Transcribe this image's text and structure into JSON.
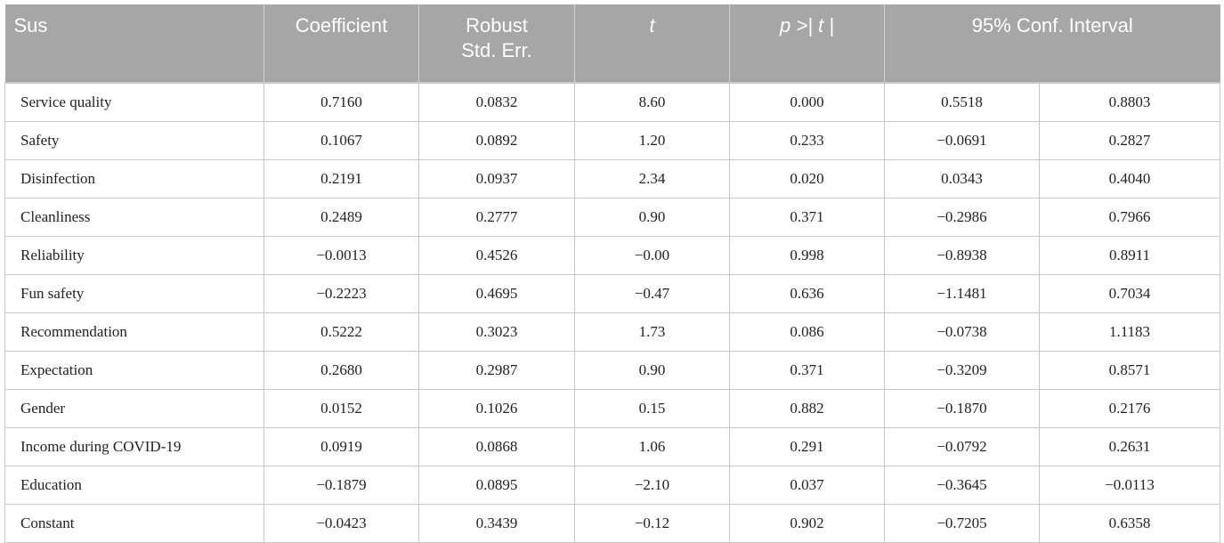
{
  "table": {
    "header": [
      "Sus",
      "Coefficient",
      "Robust\nStd. Err.",
      "t",
      "p >| t |",
      "95% Conf. Interval"
    ],
    "rows": [
      [
        "Service quality",
        "0.7160",
        "0.0832",
        "8.60",
        "0.000",
        "0.5518",
        "0.8803"
      ],
      [
        "Safety",
        "0.1067",
        "0.0892",
        "1.20",
        "0.233",
        "−0.0691",
        "0.2827"
      ],
      [
        "Disinfection",
        "0.2191",
        "0.0937",
        "2.34",
        "0.020",
        "0.0343",
        "0.4040"
      ],
      [
        "Cleanliness",
        "0.2489",
        "0.2777",
        "0.90",
        "0.371",
        "−0.2986",
        "0.7966"
      ],
      [
        "Reliability",
        "−0.0013",
        "0.4526",
        "−0.00",
        "0.998",
        "−0.8938",
        "0.8911"
      ],
      [
        "Fun safety",
        "−0.2223",
        "0.4695",
        "−0.47",
        "0.636",
        "−1.1481",
        "0.7034"
      ],
      [
        "Recommendation",
        "0.5222",
        "0.3023",
        "1.73",
        "0.086",
        "−0.0738",
        "1.1183"
      ],
      [
        "Expectation",
        "0.2680",
        "0.2987",
        "0.90",
        "0.371",
        "−0.3209",
        "0.8571"
      ],
      [
        "Gender",
        "0.0152",
        "0.1026",
        "0.15",
        "0.882",
        "−0.1870",
        "0.2176"
      ],
      [
        "Income during COVID-19",
        "0.0919",
        "0.0868",
        "1.06",
        "0.291",
        "−0.0792",
        "0.2631"
      ],
      [
        "Education",
        "−0.1879",
        "0.0895",
        "−2.10",
        "0.037",
        "−0.3645",
        "−0.0113"
      ],
      [
        "Constant",
        "−0.0423",
        "0.3439",
        "−0.12",
        "0.902",
        "−0.7205",
        "0.6358"
      ]
    ]
  }
}
